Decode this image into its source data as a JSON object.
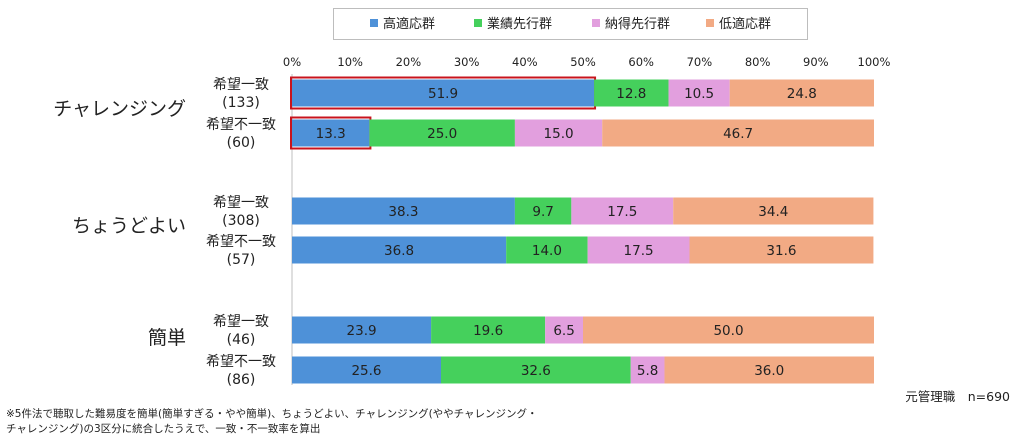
{
  "chart_data": {
    "type": "bar",
    "stacked": true,
    "orientation": "horizontal",
    "xlim": [
      0,
      100
    ],
    "xticks": [
      "0%",
      "10%",
      "20%",
      "30%",
      "40%",
      "50%",
      "60%",
      "70%",
      "80%",
      "90%",
      "100%"
    ],
    "legend_position": "top",
    "series": [
      {
        "name": "高適応群",
        "color": "#4E91D8"
      },
      {
        "name": "業績先行群",
        "color": "#45D05C"
      },
      {
        "name": "納得先行群",
        "color": "#E29FDE"
      },
      {
        "name": "低適応群",
        "color": "#F2AA84"
      }
    ],
    "groups": [
      {
        "label": "チャレンジング",
        "rows": [
          {
            "label": "希望一致",
            "n": "(133)",
            "values": [
              51.9,
              12.8,
              10.5,
              24.8
            ],
            "highlight": 0
          },
          {
            "label": "希望不一致",
            "n": "(60)",
            "values": [
              13.3,
              25.0,
              15.0,
              46.7
            ],
            "highlight": 0
          }
        ]
      },
      {
        "label": "ちょうどよい",
        "rows": [
          {
            "label": "希望一致",
            "n": "(308)",
            "values": [
              38.3,
              9.7,
              17.5,
              34.4
            ]
          },
          {
            "label": "希望不一致",
            "n": "(57)",
            "values": [
              36.8,
              14.0,
              17.5,
              31.6
            ]
          }
        ]
      },
      {
        "label": "簡単",
        "rows": [
          {
            "label": "希望一致",
            "n": "(46)",
            "values": [
              23.9,
              19.6,
              6.5,
              50.0
            ]
          },
          {
            "label": "希望不一致",
            "n": "(86)",
            "values": [
              25.6,
              32.6,
              5.8,
              36.0
            ]
          }
        ]
      }
    ],
    "highlight_color": "#C8141E"
  },
  "footer": {
    "n_label": "元管理職　n=690"
  },
  "notes": [
    "※5件法で聴取した難易度を簡単(簡単すぎる・やや簡単)、ちょうどよい、チャレンジング(ややチャレンジング・",
    "チャレンジング)の3区分に統合したうえで、一致・不一致率を算出"
  ]
}
